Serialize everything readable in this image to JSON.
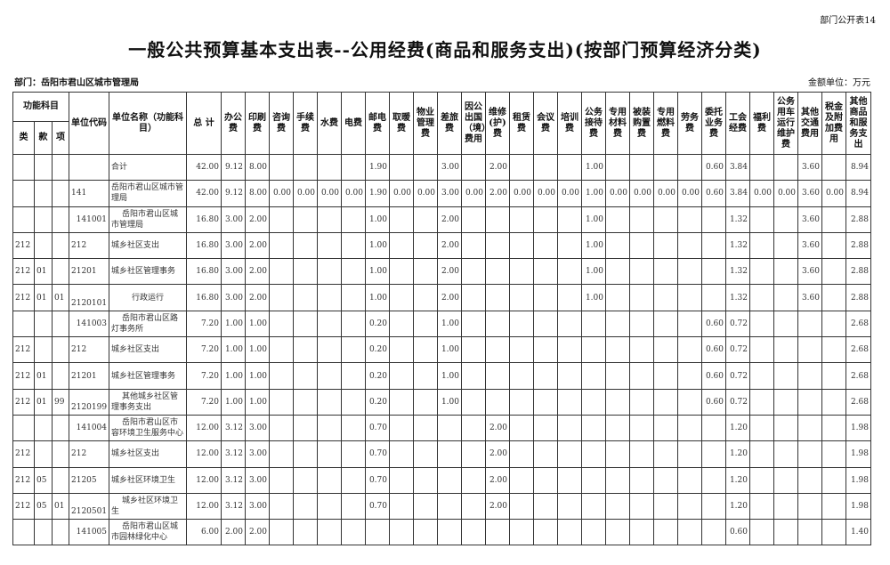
{
  "page_label": "部门公开表14",
  "title": "一般公共预算基本支出表--公用经费(商品和服务支出)(按部门预算经济分类)",
  "department": "部门：岳阳市君山区城市管理局",
  "unit": "金额单位：万元",
  "headers": {
    "function_group": "功能科目",
    "lei": "类",
    "kuan": "款",
    "xiang": "项",
    "code": "单位代码",
    "name": "单位名称（功能科目）",
    "total": "总 计",
    "items": [
      "办公费",
      "印刷费",
      "咨询费",
      "手续费",
      "水费",
      "电费",
      "邮电费",
      "取暖费",
      "物业管理费",
      "差旅费",
      "因公出国（境）费用",
      "维修(护)费",
      "租赁费",
      "会议费",
      "培训费",
      "公务接待费",
      "专用材料费",
      "被装购置费",
      "专用燃料费",
      "劳务费",
      "委托业务费",
      "工会经费",
      "福利费",
      "公务用车运行维护费",
      "其他交通费用",
      "税金及附加费用",
      "其他商品和服务支出"
    ]
  },
  "rows": [
    {
      "lei": "",
      "kuan": "",
      "xiang": "",
      "code": "",
      "name": "合计",
      "total": "42.00",
      "values": [
        "9.12",
        "8.00",
        "",
        "",
        "",
        "",
        "1.90",
        "",
        "",
        "3.00",
        "",
        "2.00",
        "",
        "",
        "",
        "1.00",
        "",
        "",
        "",
        "",
        "0.60",
        "3.84",
        "",
        "",
        "3.60",
        "",
        "8.94"
      ]
    },
    {
      "lei": "",
      "kuan": "",
      "xiang": "",
      "code": "141",
      "name": "岳阳市君山区城市管理局",
      "total": "42.00",
      "values": [
        "9.12",
        "8.00",
        "0.00",
        "0.00",
        "0.00",
        "0.00",
        "1.90",
        "0.00",
        "0.00",
        "3.00",
        "0.00",
        "2.00",
        "0.00",
        "0.00",
        "0.00",
        "1.00",
        "0.00",
        "0.00",
        "0.00",
        "0.00",
        "0.60",
        "3.84",
        "0.00",
        "0.00",
        "3.60",
        "0.00",
        "8.94"
      ]
    },
    {
      "lei": "",
      "kuan": "",
      "xiang": "",
      "code": "141001",
      "name": "岳阳市君山区城市管理局",
      "total": "16.80",
      "values": [
        "3.00",
        "2.00",
        "",
        "",
        "",
        "",
        "1.00",
        "",
        "",
        "2.00",
        "",
        "",
        "",
        "",
        "",
        "1.00",
        "",
        "",
        "",
        "",
        "",
        "1.32",
        "",
        "",
        "3.60",
        "",
        "2.88"
      ]
    },
    {
      "lei": "212",
      "kuan": "",
      "xiang": "",
      "code": "212",
      "name": "城乡社区支出",
      "total": "16.80",
      "values": [
        "3.00",
        "2.00",
        "",
        "",
        "",
        "",
        "1.00",
        "",
        "",
        "2.00",
        "",
        "",
        "",
        "",
        "",
        "1.00",
        "",
        "",
        "",
        "",
        "",
        "1.32",
        "",
        "",
        "3.60",
        "",
        "2.88"
      ]
    },
    {
      "lei": "212",
      "kuan": "01",
      "xiang": "",
      "code": "21201",
      "name": "城乡社区管理事务",
      "total": "16.80",
      "values": [
        "3.00",
        "2.00",
        "",
        "",
        "",
        "",
        "1.00",
        "",
        "",
        "2.00",
        "",
        "",
        "",
        "",
        "",
        "1.00",
        "",
        "",
        "",
        "",
        "",
        "1.32",
        "",
        "",
        "3.60",
        "",
        "2.88"
      ]
    },
    {
      "lei": "212",
      "kuan": "01",
      "xiang": "01",
      "code": "2120101",
      "name": "行政运行",
      "total": "16.80",
      "values": [
        "3.00",
        "2.00",
        "",
        "",
        "",
        "",
        "1.00",
        "",
        "",
        "2.00",
        "",
        "",
        "",
        "",
        "",
        "1.00",
        "",
        "",
        "",
        "",
        "",
        "1.32",
        "",
        "",
        "3.60",
        "",
        "2.88"
      ]
    },
    {
      "lei": "",
      "kuan": "",
      "xiang": "",
      "code": "141003",
      "name": "岳阳市君山区路灯事务所",
      "total": "7.20",
      "values": [
        "1.00",
        "1.00",
        "",
        "",
        "",
        "",
        "0.20",
        "",
        "",
        "1.00",
        "",
        "",
        "",
        "",
        "",
        "",
        "",
        "",
        "",
        "",
        "0.60",
        "0.72",
        "",
        "",
        "",
        "",
        "2.68"
      ]
    },
    {
      "lei": "212",
      "kuan": "",
      "xiang": "",
      "code": "212",
      "name": "城乡社区支出",
      "total": "7.20",
      "values": [
        "1.00",
        "1.00",
        "",
        "",
        "",
        "",
        "0.20",
        "",
        "",
        "1.00",
        "",
        "",
        "",
        "",
        "",
        "",
        "",
        "",
        "",
        "",
        "0.60",
        "0.72",
        "",
        "",
        "",
        "",
        "2.68"
      ]
    },
    {
      "lei": "212",
      "kuan": "01",
      "xiang": "",
      "code": "21201",
      "name": "城乡社区管理事务",
      "total": "7.20",
      "values": [
        "1.00",
        "1.00",
        "",
        "",
        "",
        "",
        "0.20",
        "",
        "",
        "1.00",
        "",
        "",
        "",
        "",
        "",
        "",
        "",
        "",
        "",
        "",
        "0.60",
        "0.72",
        "",
        "",
        "",
        "",
        "2.68"
      ]
    },
    {
      "lei": "212",
      "kuan": "01",
      "xiang": "99",
      "code": "2120199",
      "name": "其他城乡社区管理事务支出",
      "total": "7.20",
      "values": [
        "1.00",
        "1.00",
        "",
        "",
        "",
        "",
        "0.20",
        "",
        "",
        "1.00",
        "",
        "",
        "",
        "",
        "",
        "",
        "",
        "",
        "",
        "",
        "0.60",
        "0.72",
        "",
        "",
        "",
        "",
        "2.68"
      ]
    },
    {
      "lei": "",
      "kuan": "",
      "xiang": "",
      "code": "141004",
      "name": "岳阳市君山区市容环境卫生服务中心",
      "total": "12.00",
      "values": [
        "3.12",
        "3.00",
        "",
        "",
        "",
        "",
        "0.70",
        "",
        "",
        "",
        "",
        "2.00",
        "",
        "",
        "",
        "",
        "",
        "",
        "",
        "",
        "",
        "1.20",
        "",
        "",
        "",
        "",
        "1.98"
      ]
    },
    {
      "lei": "212",
      "kuan": "",
      "xiang": "",
      "code": "212",
      "name": "城乡社区支出",
      "total": "12.00",
      "values": [
        "3.12",
        "3.00",
        "",
        "",
        "",
        "",
        "0.70",
        "",
        "",
        "",
        "",
        "2.00",
        "",
        "",
        "",
        "",
        "",
        "",
        "",
        "",
        "",
        "1.20",
        "",
        "",
        "",
        "",
        "1.98"
      ]
    },
    {
      "lei": "212",
      "kuan": "05",
      "xiang": "",
      "code": "21205",
      "name": "城乡社区环境卫生",
      "total": "12.00",
      "values": [
        "3.12",
        "3.00",
        "",
        "",
        "",
        "",
        "0.70",
        "",
        "",
        "",
        "",
        "2.00",
        "",
        "",
        "",
        "",
        "",
        "",
        "",
        "",
        "",
        "1.20",
        "",
        "",
        "",
        "",
        "1.98"
      ]
    },
    {
      "lei": "212",
      "kuan": "05",
      "xiang": "01",
      "code": "2120501",
      "name": "城乡社区环境卫生",
      "total": "12.00",
      "values": [
        "3.12",
        "3.00",
        "",
        "",
        "",
        "",
        "0.70",
        "",
        "",
        "",
        "",
        "2.00",
        "",
        "",
        "",
        "",
        "",
        "",
        "",
        "",
        "",
        "1.20",
        "",
        "",
        "",
        "",
        "1.98"
      ]
    },
    {
      "lei": "",
      "kuan": "",
      "xiang": "",
      "code": "141005",
      "name": "岳阳市君山区城市园林绿化中心",
      "total": "6.00",
      "values": [
        "2.00",
        "2.00",
        "",
        "",
        "",
        "",
        "",
        "",
        "",
        "",
        "",
        "",
        "",
        "",
        "",
        "",
        "",
        "",
        "",
        "",
        "",
        "0.60",
        "",
        "",
        "",
        "",
        "1.40"
      ]
    }
  ]
}
